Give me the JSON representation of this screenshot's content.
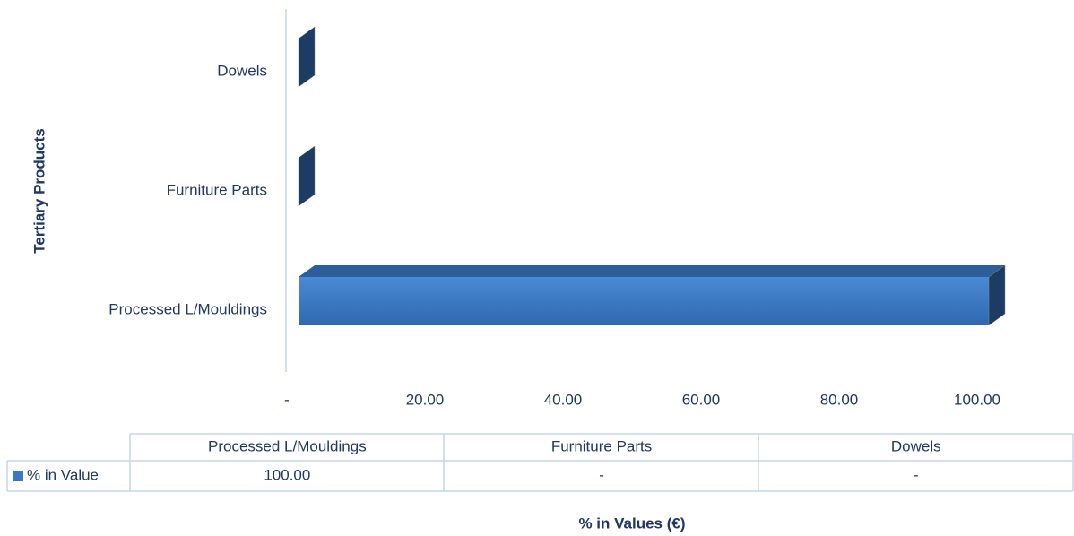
{
  "chart_data": {
    "type": "bar",
    "orientation": "horizontal",
    "y_label": "Tertiary Products",
    "x_label": "% in Values (€)",
    "categories": [
      "Processed L/Mouldings",
      "Furniture Parts",
      "Dowels"
    ],
    "series": [
      {
        "name": "% in Value",
        "color": "#3a78c6",
        "values": [
          100,
          0,
          0
        ],
        "value_labels": [
          "100.00",
          "-",
          "-"
        ]
      }
    ],
    "xlim": [
      0,
      100
    ],
    "xticks": [
      {
        "value": 0,
        "label": "-"
      },
      {
        "value": 20,
        "label": "20.00"
      },
      {
        "value": 40,
        "label": "40.00"
      },
      {
        "value": 60,
        "label": "60.00"
      },
      {
        "value": 80,
        "label": "80.00"
      },
      {
        "value": 100,
        "label": "100.00"
      }
    ],
    "grid": false,
    "data_table": true
  }
}
